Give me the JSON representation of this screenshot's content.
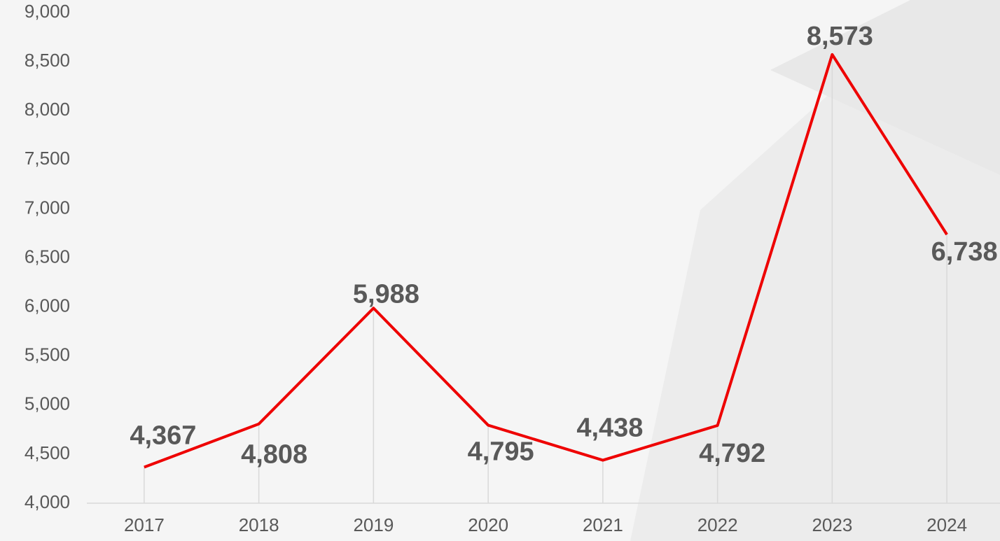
{
  "chart_data": {
    "type": "line",
    "categories": [
      "2017",
      "2018",
      "2019",
      "2020",
      "2021",
      "2022",
      "2023",
      "2024"
    ],
    "values": [
      4367,
      4808,
      5988,
      4795,
      4438,
      4792,
      8573,
      6738
    ],
    "value_labels": [
      "4,367",
      "4,808",
      "5,988",
      "4,795",
      "4,438",
      "4,792",
      "8,573",
      "6,738"
    ],
    "color": "#ee0000",
    "ylim": [
      4000,
      9000
    ],
    "yticks": [
      {
        "value": 4000,
        "label": "4,000"
      },
      {
        "value": 4500,
        "label": "4,500"
      },
      {
        "value": 5000,
        "label": "5,000"
      },
      {
        "value": 5500,
        "label": "5,500"
      },
      {
        "value": 6000,
        "label": "6,000"
      },
      {
        "value": 6500,
        "label": "6,500"
      },
      {
        "value": 7000,
        "label": "7,000"
      },
      {
        "value": 7500,
        "label": "7,500"
      },
      {
        "value": 8000,
        "label": "8,000"
      },
      {
        "value": 8500,
        "label": "8,500"
      },
      {
        "value": 9000,
        "label": "9,000"
      }
    ],
    "grid": false
  }
}
